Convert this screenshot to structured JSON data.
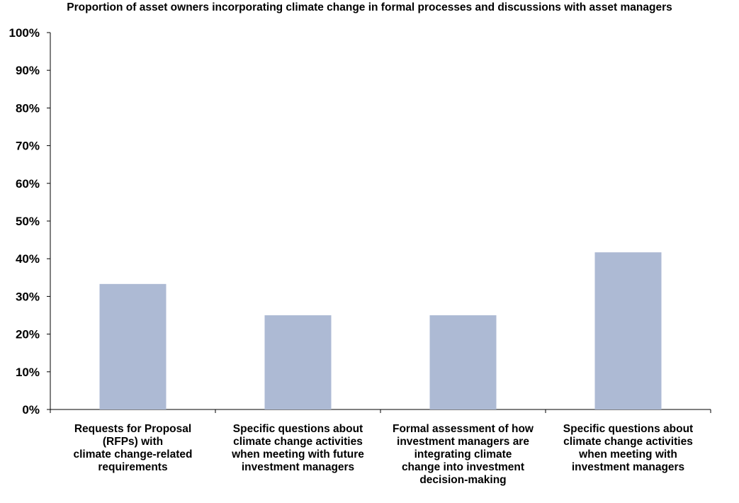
{
  "chart_data": {
    "type": "bar",
    "title": "Proportion of asset owners incorporating climate change in formal processes and discussions with asset managers",
    "categories": [
      [
        "Requests for Proposal",
        "(RFPs) with",
        "climate change-related",
        "requirements"
      ],
      [
        "Specific questions about",
        "climate change activities",
        "when meeting with future",
        "investment managers"
      ],
      [
        "Formal assessment of how",
        "investment managers are",
        "integrating climate",
        "change into investment",
        "decision-making"
      ],
      [
        "Specific questions about",
        "climate change activities",
        "when meeting with",
        "investment managers"
      ]
    ],
    "values": [
      33.3,
      25,
      25,
      41.7
    ],
    "ylim": [
      0,
      100
    ],
    "ytick_labels": [
      "0%",
      "10%",
      "20%",
      "30%",
      "40%",
      "50%",
      "60%",
      "70%",
      "80%",
      "90%",
      "100%"
    ],
    "xlabel": "",
    "ylabel": "",
    "grid": false,
    "legend": false,
    "bar_color": "#adbad4"
  }
}
